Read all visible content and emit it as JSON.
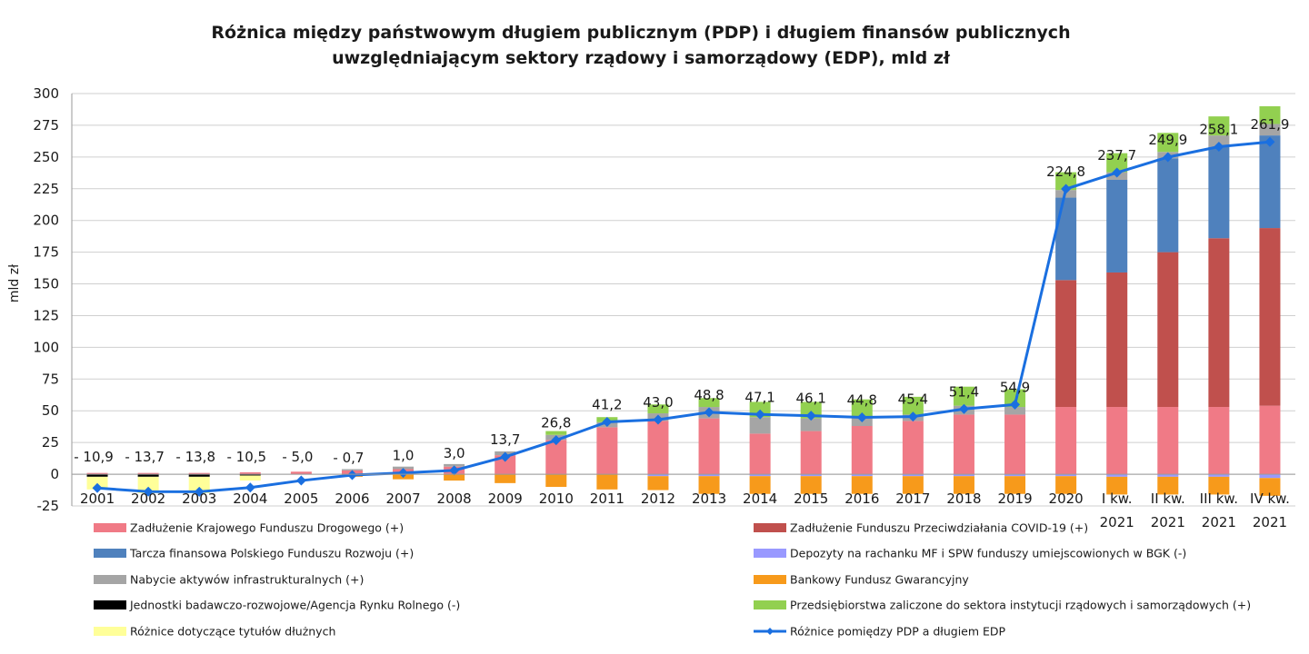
{
  "chart_data": {
    "type": "bar",
    "subtype": "stacked-bar-with-line",
    "title_lines": [
      "Różnica między państwowym długiem publicznym (PDP) i długiem finansów publicznych",
      "uwzględniającym sektory rządowy i samorządowy (EDP), mld zł"
    ],
    "ylabel": "mld zł",
    "xlabel": "",
    "ylim": [
      -25,
      300
    ],
    "yticks": [
      -25,
      0,
      25,
      50,
      75,
      100,
      125,
      150,
      175,
      200,
      225,
      250,
      275,
      300
    ],
    "grid": true,
    "legend_position": "bottom",
    "categories": [
      [
        "2001"
      ],
      [
        "2002"
      ],
      [
        "2003"
      ],
      [
        "2004"
      ],
      [
        "2005"
      ],
      [
        "2006"
      ],
      [
        "2007"
      ],
      [
        "2008"
      ],
      [
        "2009"
      ],
      [
        "2010"
      ],
      [
        "2011"
      ],
      [
        "2012"
      ],
      [
        "2013"
      ],
      [
        "2014"
      ],
      [
        "2015"
      ],
      [
        "2016"
      ],
      [
        "2017"
      ],
      [
        "2018"
      ],
      [
        "2019"
      ],
      [
        "2020"
      ],
      [
        "I kw.",
        "2021"
      ],
      [
        "II kw.",
        "2021"
      ],
      [
        "III kw.",
        "2021"
      ],
      [
        "IV kw.",
        "2021"
      ]
    ],
    "series": [
      {
        "name": "Zadłużenie Krajowego Funduszu Drogowego (+)",
        "color": "#f07a86",
        "kind": "bar",
        "values": [
          1,
          1,
          1,
          1.5,
          2,
          3,
          4,
          6,
          15,
          27,
          37,
          42,
          44,
          32,
          34,
          38,
          42,
          47,
          47,
          53,
          53,
          53,
          53,
          54
        ]
      },
      {
        "name": "Zadłużenie Funduszu Przeciwdziałania COVID-19 (+)",
        "color": "#c0504d",
        "kind": "bar",
        "values": [
          0,
          0,
          0,
          0,
          0,
          0,
          0,
          0,
          0,
          0,
          0,
          0,
          0,
          0,
          0,
          0,
          0,
          0,
          0,
          100,
          106,
          122,
          133,
          140
        ]
      },
      {
        "name": "Tarcza finansowa Polskiego Funduszu Rozwoju (+)",
        "color": "#4f81bd",
        "kind": "bar",
        "values": [
          0,
          0,
          0,
          0,
          0,
          0,
          0,
          0,
          0,
          0,
          0,
          0,
          0,
          0,
          0,
          0,
          0,
          0,
          0,
          65,
          73,
          74,
          72,
          73
        ]
      },
      {
        "name": "Depozyty na rachanku MF i SPW funduszy umiejscowionych w BGK (-)",
        "color": "#9999ff",
        "kind": "bar",
        "values": [
          0,
          0,
          0,
          0,
          0,
          0,
          0,
          0,
          0,
          0,
          0,
          -1.5,
          -1.5,
          -1.5,
          -1.5,
          -1.5,
          -1.5,
          -1.5,
          -1.5,
          -1.5,
          -2,
          -2,
          -2,
          -3
        ]
      },
      {
        "name": "Nabycie aktywów infrastrukturalnych (+)",
        "color": "#a5a5a5",
        "kind": "bar",
        "values": [
          0,
          0,
          0,
          0,
          0,
          1,
          2,
          2,
          3,
          4,
          4,
          6,
          9,
          13,
          10,
          7,
          5,
          7,
          6,
          6,
          6,
          5,
          9,
          9
        ]
      },
      {
        "name": "Bankowy Fundusz Gwarancyjny",
        "color": "#f79a1b",
        "kind": "bar",
        "values": [
          0,
          0,
          0,
          0,
          0,
          -2,
          -4,
          -5,
          -7,
          -10,
          -12,
          -11,
          -14,
          -14,
          -14,
          -14,
          -14,
          -14,
          -14,
          -14,
          -14,
          -14,
          -14,
          -14
        ]
      },
      {
        "name": "Jednostki badawczo-rozwojowe/Agencja Rynku Rolnego (-)",
        "color": "#000000",
        "kind": "bar",
        "values": [
          -2,
          -2,
          -2,
          -1,
          0,
          0,
          0,
          0,
          0,
          0,
          0,
          0,
          0,
          0,
          0,
          0,
          0,
          0,
          0,
          0,
          0,
          0,
          0,
          0
        ]
      },
      {
        "name": "Przedsiębiorstwa zaliczone do sektora instytucji rządowych i samorządowych (+)",
        "color": "#92d050",
        "kind": "bar",
        "values": [
          0,
          0,
          0,
          0,
          0,
          0,
          0,
          0,
          0,
          3,
          4,
          7,
          7,
          12,
          13,
          14,
          14,
          15,
          14,
          14,
          15,
          15,
          15,
          14
        ]
      },
      {
        "name": "Różnice dotyczące tytułów dłużnych",
        "color": "#ffff99",
        "kind": "bar",
        "values": [
          -10,
          -13,
          -13,
          -4,
          0,
          0,
          0,
          0,
          0,
          0,
          0,
          0,
          0,
          0,
          0,
          0,
          0,
          0,
          0,
          0,
          0,
          0,
          0,
          0
        ]
      },
      {
        "name": "Różnice pomiędzy PDP a długiem EDP",
        "color": "#1a6fe0",
        "kind": "line",
        "values": [
          -10.9,
          -13.7,
          -13.8,
          -10.5,
          -5.0,
          -0.7,
          1.0,
          3.0,
          13.7,
          26.8,
          41.2,
          43.0,
          48.8,
          47.1,
          46.1,
          44.8,
          45.4,
          51.4,
          54.9,
          224.8,
          237.7,
          249.9,
          258.1,
          261.9
        ]
      }
    ],
    "data_labels": [
      "- 10,9",
      "- 13,7",
      "- 13,8",
      "- 10,5",
      "- 5,0",
      "- 0,7",
      "1,0",
      "3,0",
      "13,7",
      "26,8",
      "41,2",
      "43,0",
      "48,8",
      "47,1",
      "46,1",
      "44,8",
      "45,4",
      "51,4",
      "54,9",
      "224,8",
      "237,7",
      "249,9",
      "258,1",
      "261,9"
    ],
    "legend_order": [
      0,
      1,
      2,
      3,
      4,
      5,
      6,
      7,
      8,
      9
    ]
  }
}
